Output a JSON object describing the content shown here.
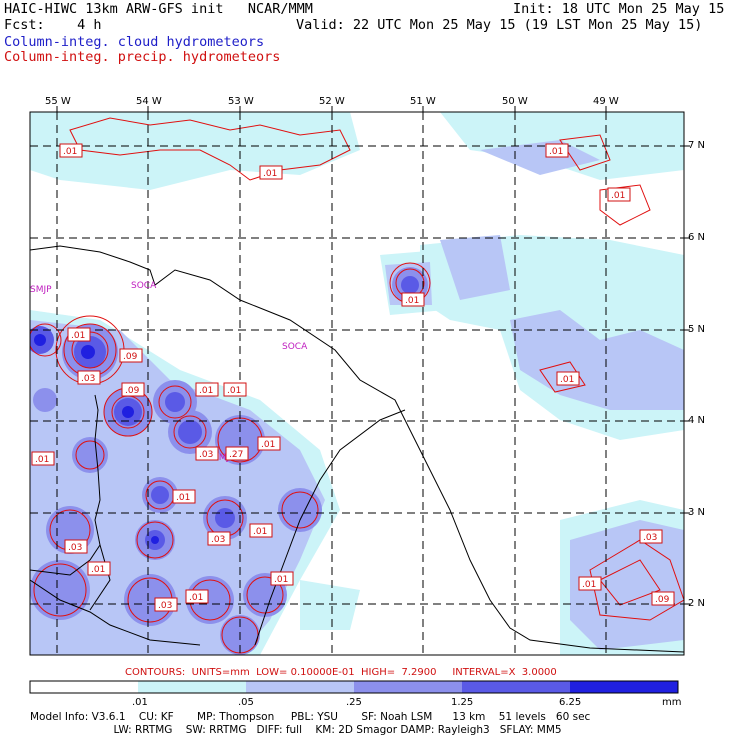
{
  "header": {
    "left_line1": "HAIC-HIWC 13km ARW-GFS init   NCAR/MMM",
    "right_line1": "Init: 18 UTC Mon 25 May 15",
    "left_line2": "Fcst:    4 h",
    "right_line2": "Valid: 22 UTC Mon 25 May 15 (19 LST Mon 25 May 15)",
    "field1": "Column-integ. cloud hydrometeors",
    "field2": "Column-integ. precip. hydrometeors"
  },
  "colors": {
    "field1": "#1e1ec8",
    "field2": "#d01010",
    "cloud_levels": [
      "#ffffff",
      "#ccf4f8",
      "#b8c6f6",
      "#8c90ec",
      "#5a5ae6",
      "#2020e0"
    ],
    "contour": "#e01010"
  },
  "longitudes": [
    "55 W",
    "54 W",
    "53 W",
    "52 W",
    "51 W",
    "50 W",
    "49 W"
  ],
  "latitudes": [
    "7 N",
    "6 N",
    "5 N",
    "4 N",
    "3 N",
    "2 N"
  ],
  "places": [
    "SMJP",
    "SOCA",
    "SOCA",
    "SMJP"
  ],
  "contour_labels": [
    ".01",
    ".01",
    ".01",
    ".01",
    ".01",
    ".01",
    ".09",
    ".03",
    ".09",
    ".01",
    ".01",
    ".01",
    ".03",
    ".27",
    ".01",
    ".01",
    ".03",
    ".01",
    ".01",
    ".03",
    ".01",
    ".03",
    ".03",
    ".01",
    ".09",
    ".01",
    ".01"
  ],
  "contours_line": "CONTOURS:  UNITS=mm  LOW= 0.10000E-01  HIGH=  7.2900     INTERVAL=X  3.0000",
  "colorbar": {
    "ticks": [
      ".01",
      ".05",
      ".25",
      "1.25",
      "6.25"
    ],
    "unit": "mm"
  },
  "footer": {
    "line1": "Model Info: V3.6.1    CU: KF       MP: Thompson     PBL: YSU       SF: Noah LSM      13 km    51 levels   60 sec",
    "line2": "                         LW: RRTMG    SW: RRTMG   DIFF: full    KM: 2D Smagor DAMP: Rayleigh3   SFLAY: MM5"
  }
}
